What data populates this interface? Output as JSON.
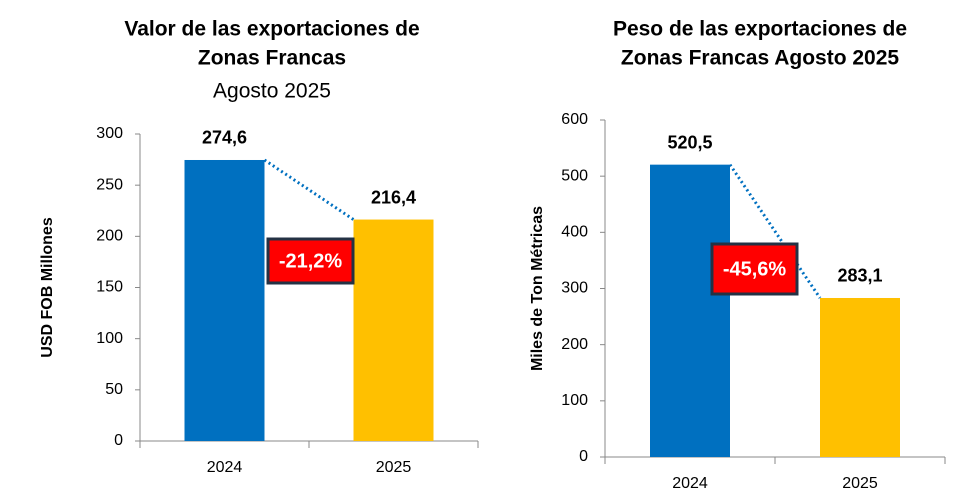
{
  "chart_data": [
    {
      "type": "bar",
      "title": [
        "Valor de las exportaciones de",
        "Zonas Francas"
      ],
      "subtitle": "Agosto 2025",
      "ylabel": "USD FOB Millones",
      "categories": [
        "2024",
        "2025"
      ],
      "values": [
        274.6,
        216.4
      ],
      "value_labels": [
        "274,6",
        "216,4"
      ],
      "colors": [
        "#0070c0",
        "#ffc000"
      ],
      "annotation": "-21,2%",
      "ylim": [
        0,
        300
      ],
      "yticks": [
        0,
        50,
        100,
        150,
        200,
        250,
        300
      ]
    },
    {
      "type": "bar",
      "title": [
        "Peso de las exportaciones de",
        "Zonas Francas Agosto 2025"
      ],
      "ylabel": "Miles de Ton Métricas",
      "categories": [
        "2024",
        "2025"
      ],
      "values": [
        520.5,
        283.1
      ],
      "value_labels": [
        "520,5",
        "283,1"
      ],
      "colors": [
        "#0070c0",
        "#ffc000"
      ],
      "annotation": "-45,6%",
      "ylim": [
        0,
        600
      ],
      "yticks": [
        0,
        100,
        200,
        300,
        400,
        500,
        600
      ]
    }
  ]
}
